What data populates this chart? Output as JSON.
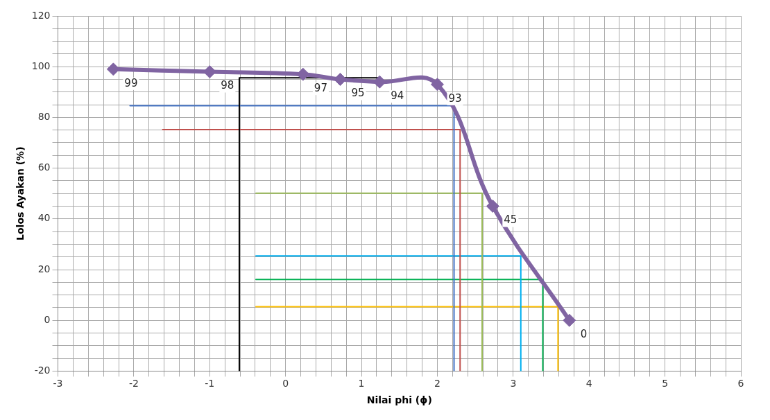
{
  "chart_data": {
    "type": "line",
    "xlabel": "Nilai phi (ϕ)",
    "ylabel": "Lolos Ayakan (%)",
    "xlim": [
      -3,
      6
    ],
    "ylim": [
      -20,
      120
    ],
    "xticks": [
      -3,
      {
        "value": -2.8,
        "label": null
      },
      {
        "value": -2.6,
        "label": null
      },
      {
        "value": -2.4,
        "label": null
      },
      {
        "value": -2.2,
        "label": null
      },
      -2,
      {
        "value": -1.8,
        "label": null
      },
      {
        "value": -1.6,
        "label": null
      },
      {
        "value": -1.4,
        "label": null
      },
      {
        "value": -1.2,
        "label": null
      },
      -1,
      {
        "value": -0.8,
        "label": null
      },
      {
        "value": -0.6,
        "label": null
      },
      {
        "value": -0.4,
        "label": null
      },
      {
        "value": -0.2,
        "label": null
      },
      0,
      {
        "value": 0.2,
        "label": null
      },
      {
        "value": 0.4,
        "label": null
      },
      {
        "value": 0.6,
        "label": null
      },
      {
        "value": 0.8,
        "label": null
      },
      1,
      {
        "value": 1.2,
        "label": null
      },
      {
        "value": 1.4,
        "label": null
      },
      {
        "value": 1.6,
        "label": null
      },
      {
        "value": 1.8,
        "label": null
      },
      2,
      {
        "value": 2.2,
        "label": null
      },
      {
        "value": 2.4,
        "label": null
      },
      {
        "value": 2.6,
        "label": null
      },
      {
        "value": 2.8,
        "label": null
      },
      3,
      {
        "value": 3.2,
        "label": null
      },
      {
        "value": 3.4,
        "label": null
      },
      {
        "value": 3.6,
        "label": null
      },
      {
        "value": 3.8,
        "label": null
      },
      4,
      {
        "value": 4.2,
        "label": null
      },
      {
        "value": 4.4,
        "label": null
      },
      {
        "value": 4.6,
        "label": null
      },
      {
        "value": 4.8,
        "label": null
      },
      5,
      {
        "value": 5.2,
        "label": null
      },
      {
        "value": 5.4,
        "label": null
      },
      {
        "value": 5.6,
        "label": null
      },
      {
        "value": 5.8,
        "label": null
      },
      6
    ],
    "yticks": [
      -20,
      {
        "value": -15,
        "label": null
      },
      {
        "value": -10,
        "label": null
      },
      {
        "value": -5,
        "label": null
      },
      0,
      {
        "value": 5,
        "label": null
      },
      {
        "value": 10,
        "label": null
      },
      {
        "value": 15,
        "label": null
      },
      20,
      {
        "value": 25,
        "label": null
      },
      {
        "value": 30,
        "label": null
      },
      {
        "value": 35,
        "label": null
      },
      40,
      {
        "value": 45,
        "label": null
      },
      {
        "value": 50,
        "label": null
      },
      {
        "value": 55,
        "label": null
      },
      60,
      {
        "value": 65,
        "label": null
      },
      {
        "value": 70,
        "label": null
      },
      {
        "value": 75,
        "label": null
      },
      80,
      {
        "value": 85,
        "label": null
      },
      {
        "value": 90,
        "label": null
      },
      {
        "value": 95,
        "label": null
      },
      100,
      {
        "value": 105,
        "label": null
      },
      {
        "value": 110,
        "label": null
      },
      {
        "value": 115,
        "label": null
      },
      120
    ],
    "grid": true,
    "legend": false,
    "series": [
      {
        "color": "#000000",
        "x": [
          -0.61,
          -0.61,
          1.24
        ],
        "values": [
          -20,
          95.6,
          95.6
        ],
        "marker": "none"
      },
      {
        "color": "#4472c4",
        "x": [
          -2.05,
          2.22,
          2.22
        ],
        "values": [
          84.6,
          84.6,
          -20
        ],
        "marker": "none"
      },
      {
        "color": "#c0504d",
        "x": [
          -1.62,
          2.3,
          2.3
        ],
        "values": [
          75.2,
          75.2,
          -20
        ],
        "marker": "none"
      },
      {
        "color": "#9bbb59",
        "x": [
          -0.39,
          2.59,
          2.59
        ],
        "values": [
          50.1,
          50.1,
          -20
        ],
        "marker": "none"
      },
      {
        "color": "#00b0f0",
        "x": [
          -0.39,
          3.1,
          3.1
        ],
        "values": [
          25.4,
          25.4,
          -20
        ],
        "marker": "none"
      },
      {
        "color": "#00b050",
        "x": [
          -0.39,
          3.39,
          3.39
        ],
        "values": [
          16.1,
          16.1,
          -20
        ],
        "marker": "none"
      },
      {
        "color": "#ffc000",
        "x": [
          -0.39,
          3.59,
          3.59
        ],
        "values": [
          5.4,
          5.4,
          -20
        ],
        "marker": "none"
      },
      {
        "color": "#8064a2",
        "x": [
          -2.27,
          -1.0,
          0.23,
          0.72,
          1.24,
          2.0,
          2.73,
          3.74
        ],
        "values": [
          99,
          98,
          97,
          95,
          94,
          93,
          45,
          0
        ],
        "value_labels": [
          "99",
          "98",
          "97",
          "95",
          "94",
          "93",
          "45",
          "0"
        ],
        "marker": "diamond"
      }
    ]
  }
}
